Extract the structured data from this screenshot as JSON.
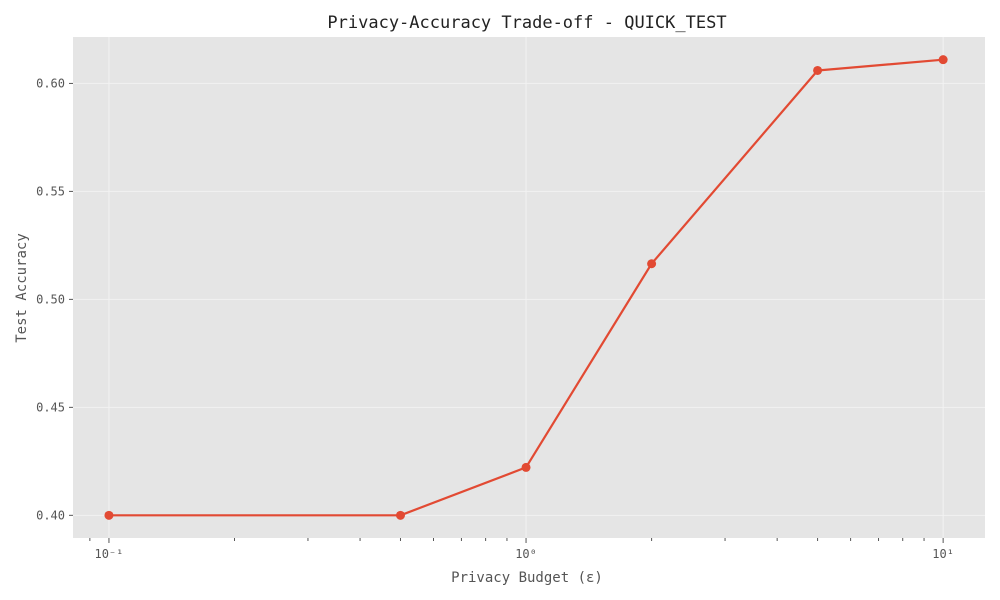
{
  "colors": {
    "plot_bg": "#e5e5e5",
    "grid": "#f2f2f2",
    "line": "#e24a33",
    "text": "#555555",
    "title": "#222222"
  },
  "chart_data": {
    "type": "line",
    "title": "Privacy-Accuracy Trade-off - QUICK_TEST",
    "xlabel": "Privacy Budget (ε)",
    "ylabel": "Test Accuracy",
    "xscale": "log",
    "xlim": [
      0.082,
      12.6
    ],
    "ylim": [
      0.3895,
      0.6215
    ],
    "grid": true,
    "x_major_ticks": [
      {
        "value": 0.1,
        "label": "10⁻¹"
      },
      {
        "value": 1,
        "label": "10⁰"
      },
      {
        "value": 10,
        "label": "10¹"
      }
    ],
    "x_minor_ticks": [
      0.09,
      0.2,
      0.3,
      0.4,
      0.5,
      0.6,
      0.7,
      0.8,
      0.9,
      2,
      3,
      4,
      5,
      6,
      7,
      8,
      9
    ],
    "y_ticks": [
      0.4,
      0.45,
      0.5,
      0.55,
      0.6
    ],
    "y_tick_labels": [
      "0.40",
      "0.45",
      "0.50",
      "0.55",
      "0.60"
    ],
    "series": [
      {
        "x": [
          0.1,
          0.5,
          1.0,
          2.0,
          5.0,
          10.0
        ],
        "y": [
          0.4,
          0.4,
          0.4222,
          0.5165,
          0.606,
          0.611
        ]
      }
    ]
  }
}
